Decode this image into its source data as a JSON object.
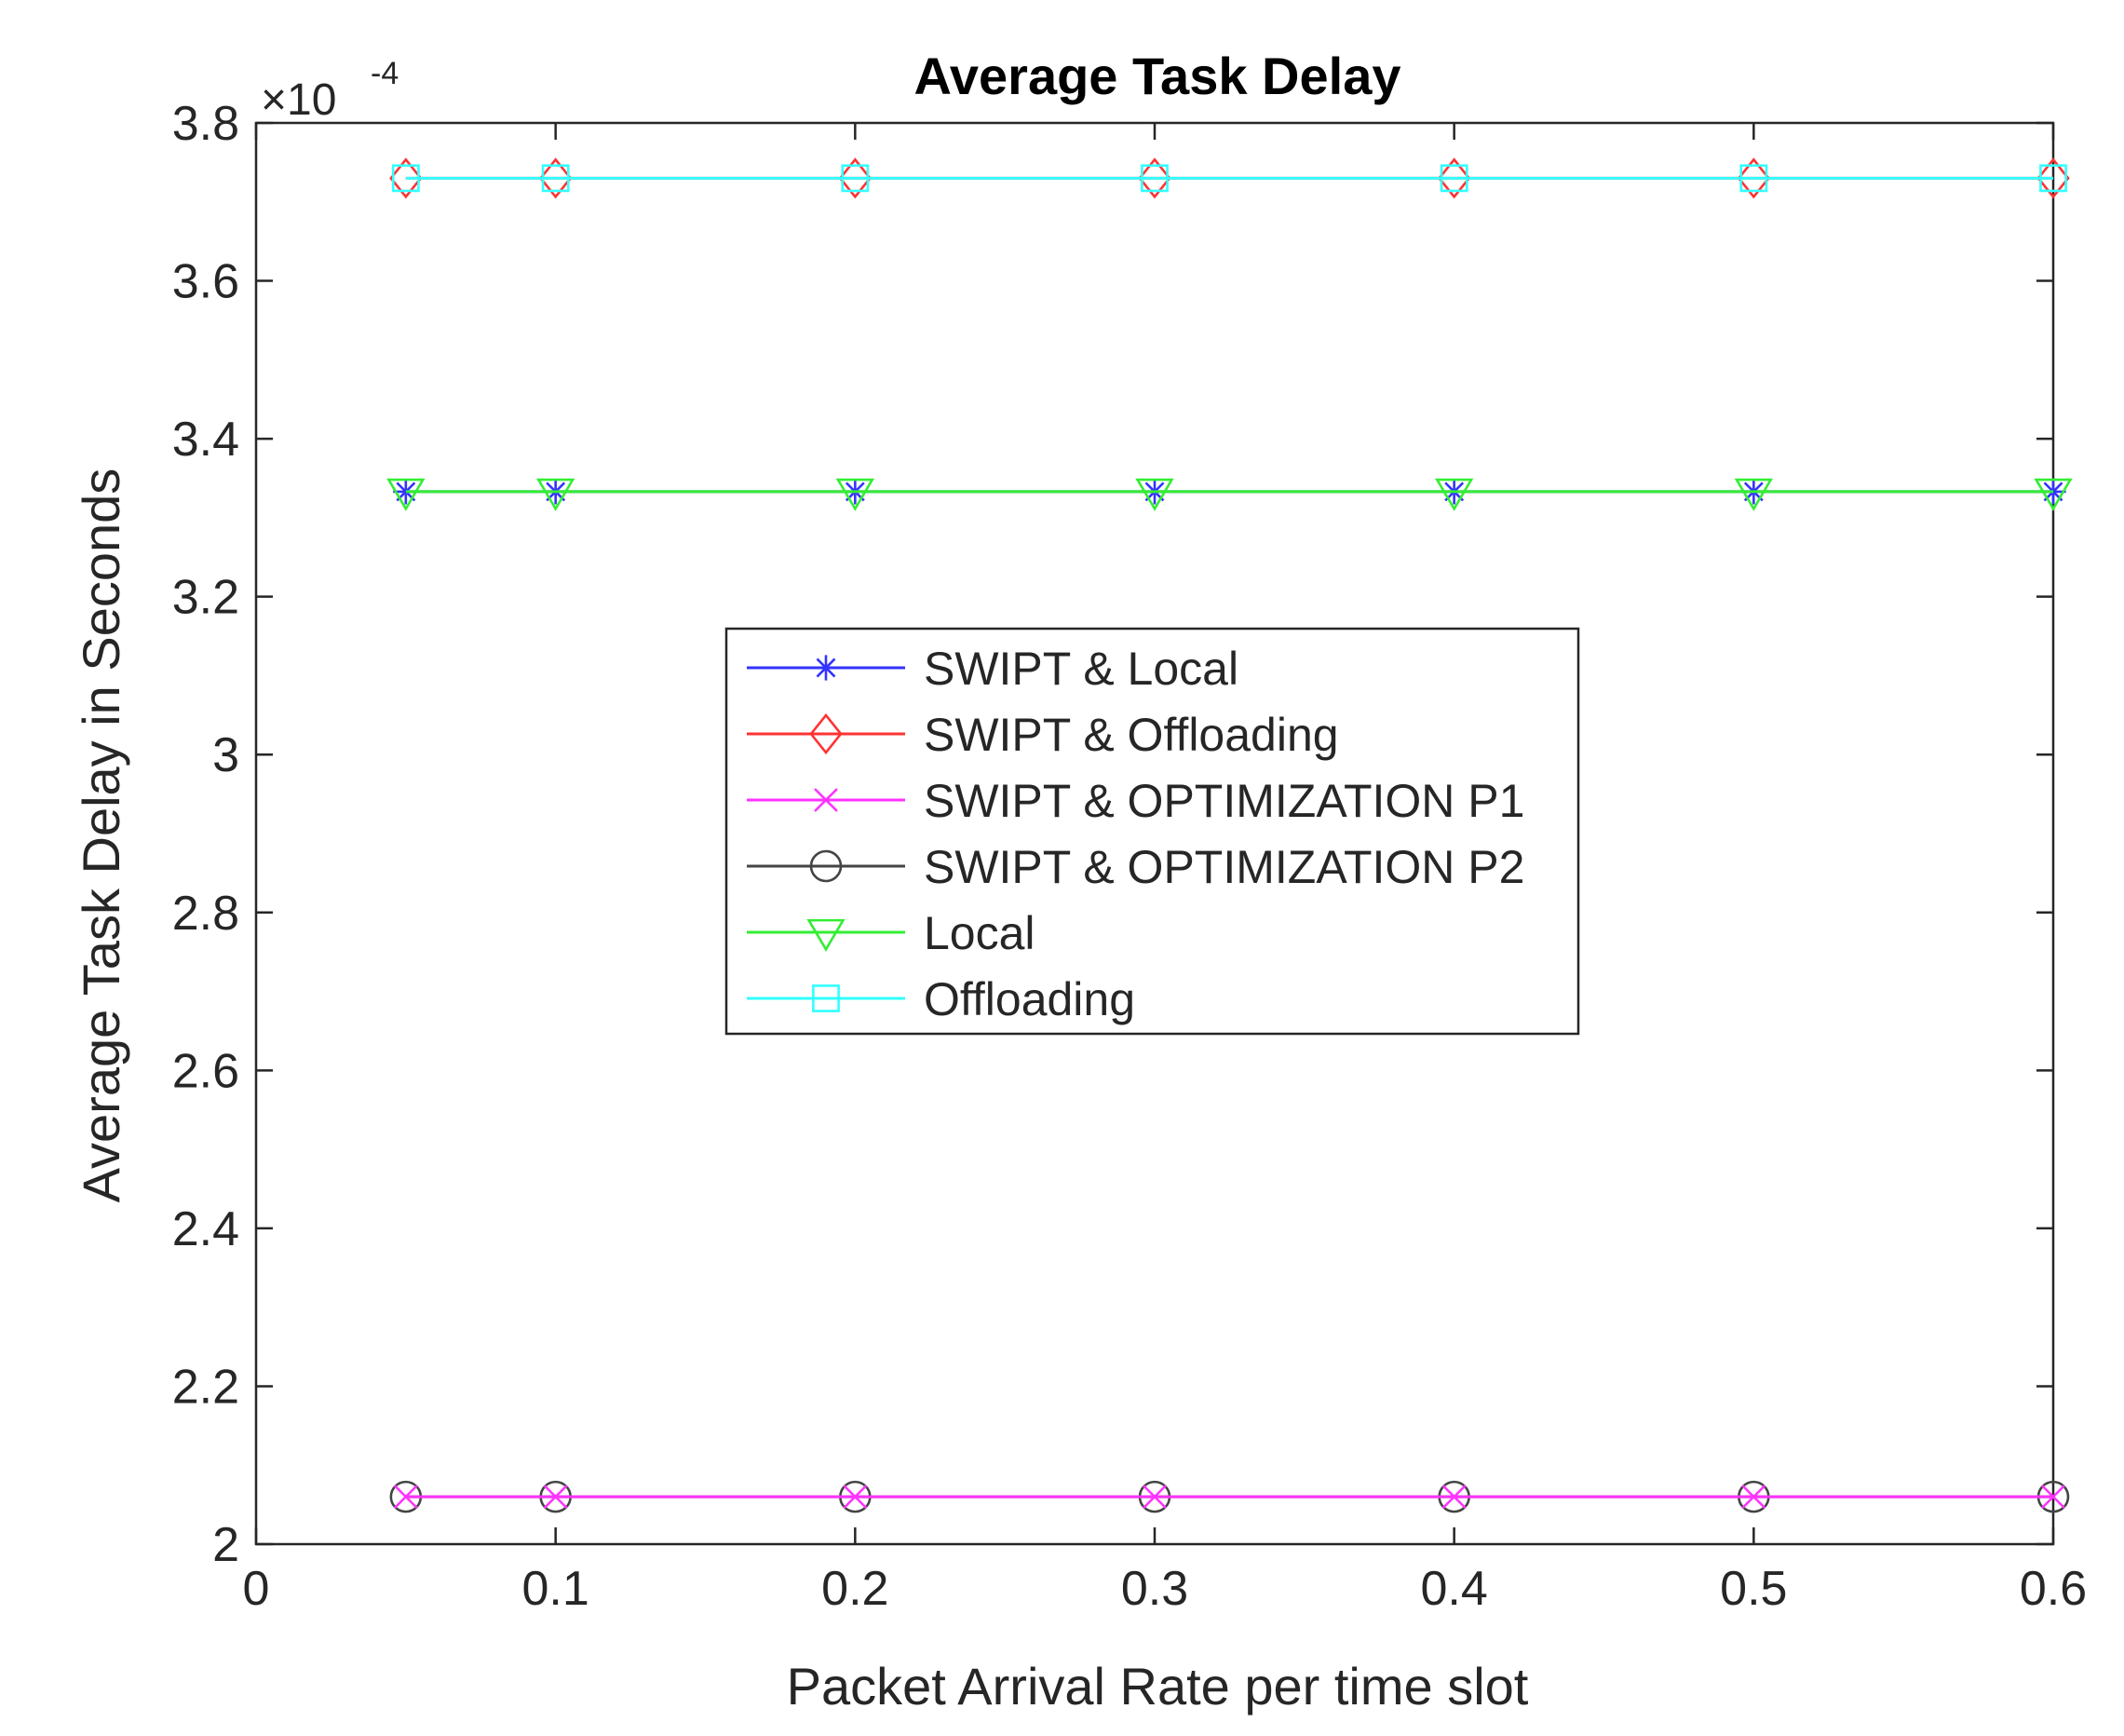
{
  "chart_data": {
    "type": "line",
    "title": "Average Task Delay",
    "xlabel": "Packet Arrival Rate per time slot",
    "ylabel": "Average Task Delay in Seconds",
    "y_multiplier_base": "×10",
    "y_multiplier_exp": "-4",
    "xlim": [
      0,
      0.6
    ],
    "ylim": [
      2.0,
      3.8
    ],
    "xticks": [
      "0",
      "0.1",
      "0.2",
      "0.3",
      "0.4",
      "0.5",
      "0.6"
    ],
    "yticks": [
      "2",
      "2.2",
      "2.4",
      "2.6",
      "2.8",
      "3",
      "3.2",
      "3.4",
      "3.6",
      "3.8"
    ],
    "x": [
      0.05,
      0.1,
      0.2,
      0.3,
      0.4,
      0.5,
      0.6
    ],
    "legend_position": "center",
    "series": [
      {
        "name": "SWIPT & Local",
        "color": "#3333ff",
        "marker": "star",
        "values": [
          3.333,
          3.333,
          3.333,
          3.333,
          3.333,
          3.333,
          3.333
        ]
      },
      {
        "name": "SWIPT & Offloading",
        "color": "#ff3333",
        "marker": "diamond",
        "values": [
          3.73,
          3.73,
          3.73,
          3.73,
          3.73,
          3.73,
          3.73
        ]
      },
      {
        "name": "SWIPT & OPTIMIZATION P1",
        "color": "#ff33ff",
        "marker": "x",
        "values": [
          2.06,
          2.06,
          2.06,
          2.06,
          2.06,
          2.06,
          2.06
        ]
      },
      {
        "name": "SWIPT & OPTIMIZATION P2",
        "color": "#444444",
        "marker": "circle",
        "values": [
          2.06,
          2.06,
          2.06,
          2.06,
          2.06,
          2.06,
          2.06
        ]
      },
      {
        "name": "Local",
        "color": "#33ee33",
        "marker": "triangle-down",
        "values": [
          3.333,
          3.333,
          3.333,
          3.333,
          3.333,
          3.333,
          3.333
        ]
      },
      {
        "name": "Offloading",
        "color": "#33ffff",
        "marker": "square",
        "values": [
          3.73,
          3.73,
          3.73,
          3.73,
          3.73,
          3.73,
          3.73
        ]
      }
    ]
  }
}
